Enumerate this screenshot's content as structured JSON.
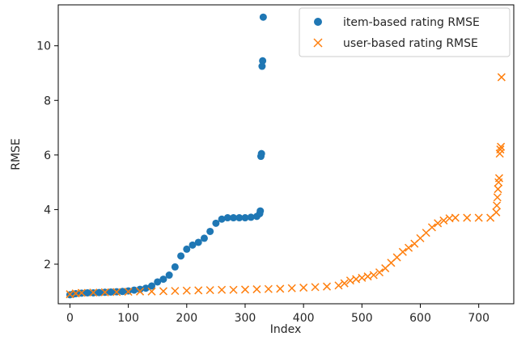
{
  "chart_data": {
    "type": "scatter",
    "title": "",
    "xlabel": "Index",
    "ylabel": "RMSE",
    "xlim": [
      -20,
      760
    ],
    "ylim": [
      0.55,
      11.5
    ],
    "x_ticks": [
      0,
      100,
      200,
      300,
      400,
      500,
      600,
      700
    ],
    "y_ticks": [
      2,
      4,
      6,
      8,
      10
    ],
    "grid": false,
    "legend_position": "top-right",
    "series": [
      {
        "name": "item-based rating RMSE",
        "marker": "circle",
        "color": "#1f77b4",
        "points": [
          [
            0,
            0.88
          ],
          [
            5,
            0.9
          ],
          [
            10,
            0.92
          ],
          [
            20,
            0.94
          ],
          [
            30,
            0.95
          ],
          [
            40,
            0.95
          ],
          [
            50,
            0.96
          ],
          [
            60,
            0.97
          ],
          [
            70,
            0.98
          ],
          [
            80,
            0.99
          ],
          [
            90,
            1.0
          ],
          [
            100,
            1.02
          ],
          [
            110,
            1.05
          ],
          [
            120,
            1.08
          ],
          [
            130,
            1.12
          ],
          [
            140,
            1.2
          ],
          [
            150,
            1.35
          ],
          [
            160,
            1.45
          ],
          [
            170,
            1.6
          ],
          [
            180,
            1.9
          ],
          [
            190,
            2.3
          ],
          [
            200,
            2.55
          ],
          [
            210,
            2.7
          ],
          [
            220,
            2.8
          ],
          [
            230,
            2.95
          ],
          [
            240,
            3.2
          ],
          [
            250,
            3.5
          ],
          [
            260,
            3.65
          ],
          [
            270,
            3.7
          ],
          [
            280,
            3.7
          ],
          [
            290,
            3.7
          ],
          [
            300,
            3.7
          ],
          [
            310,
            3.72
          ],
          [
            320,
            3.75
          ],
          [
            325,
            3.85
          ],
          [
            326,
            3.95
          ],
          [
            327,
            5.95
          ],
          [
            328,
            6.05
          ],
          [
            329,
            9.25
          ],
          [
            330,
            9.45
          ],
          [
            331,
            11.05
          ]
        ]
      },
      {
        "name": "user-based rating RMSE",
        "marker": "x",
        "color": "#ff7f0e",
        "points": [
          [
            0,
            0.9
          ],
          [
            10,
            0.93
          ],
          [
            20,
            0.95
          ],
          [
            40,
            0.96
          ],
          [
            60,
            0.97
          ],
          [
            80,
            0.98
          ],
          [
            100,
            0.99
          ],
          [
            120,
            1.0
          ],
          [
            140,
            1.0
          ],
          [
            160,
            1.01
          ],
          [
            180,
            1.02
          ],
          [
            200,
            1.03
          ],
          [
            220,
            1.04
          ],
          [
            240,
            1.05
          ],
          [
            260,
            1.06
          ],
          [
            280,
            1.06
          ],
          [
            300,
            1.07
          ],
          [
            320,
            1.08
          ],
          [
            340,
            1.09
          ],
          [
            360,
            1.1
          ],
          [
            380,
            1.12
          ],
          [
            400,
            1.14
          ],
          [
            420,
            1.16
          ],
          [
            440,
            1.18
          ],
          [
            460,
            1.22
          ],
          [
            470,
            1.3
          ],
          [
            480,
            1.4
          ],
          [
            490,
            1.45
          ],
          [
            500,
            1.5
          ],
          [
            510,
            1.55
          ],
          [
            520,
            1.6
          ],
          [
            530,
            1.7
          ],
          [
            540,
            1.85
          ],
          [
            550,
            2.05
          ],
          [
            560,
            2.25
          ],
          [
            570,
            2.45
          ],
          [
            580,
            2.6
          ],
          [
            590,
            2.75
          ],
          [
            600,
            2.95
          ],
          [
            610,
            3.15
          ],
          [
            620,
            3.35
          ],
          [
            630,
            3.5
          ],
          [
            640,
            3.6
          ],
          [
            650,
            3.68
          ],
          [
            660,
            3.7
          ],
          [
            680,
            3.7
          ],
          [
            700,
            3.7
          ],
          [
            720,
            3.7
          ],
          [
            730,
            3.9
          ],
          [
            731,
            4.15
          ],
          [
            732,
            4.45
          ],
          [
            733,
            4.75
          ],
          [
            734,
            5.0
          ],
          [
            735,
            5.15
          ],
          [
            736,
            6.05
          ],
          [
            737,
            6.2
          ],
          [
            738,
            6.3
          ],
          [
            739,
            8.85
          ]
        ]
      }
    ]
  }
}
